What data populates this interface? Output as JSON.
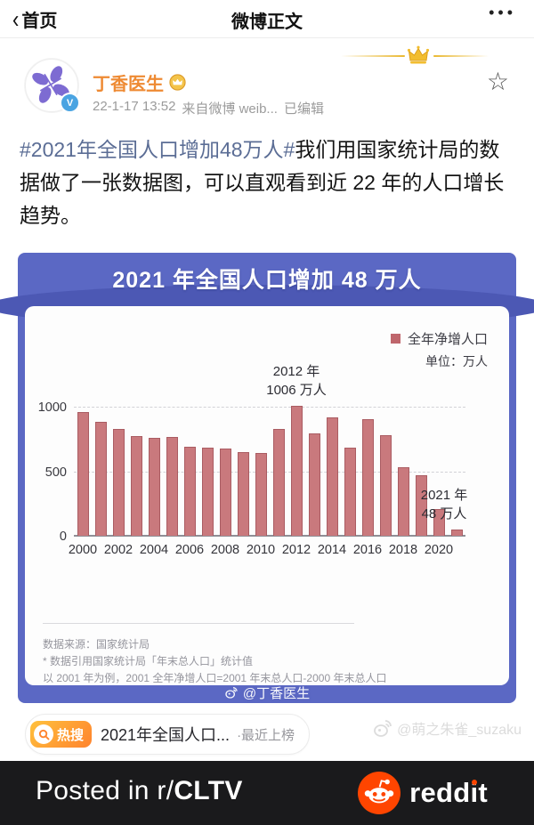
{
  "navbar": {
    "back_label": "首页",
    "title": "微博正文"
  },
  "post": {
    "author": "丁香医生",
    "timestamp": "22-1-17 13:52",
    "source": "来自微博 weib...",
    "edited_label": "已编辑",
    "hashtag": "#2021年全国人口增加48万人#",
    "body": "我们用国家统计局的数据做了一张数据图，可以直观看到近 22 年的人口增长趋势。"
  },
  "chart_data": {
    "type": "bar",
    "title": "2021 年全国人口增加 48 万人",
    "legend": "全年净增人口",
    "unit_label": "单位：万人",
    "categories": [
      2000,
      2001,
      2002,
      2003,
      2004,
      2005,
      2006,
      2007,
      2008,
      2009,
      2010,
      2011,
      2012,
      2013,
      2014,
      2015,
      2016,
      2017,
      2018,
      2019,
      2020,
      2021
    ],
    "values": [
      957,
      884,
      826,
      774,
      761,
      768,
      692,
      681,
      673,
      646,
      641,
      825,
      1006,
      795,
      915,
      680,
      906,
      779,
      530,
      467,
      204,
      48
    ],
    "ylim": [
      0,
      1100
    ],
    "yticks": [
      0,
      500,
      1000
    ],
    "xticks": [
      2000,
      2002,
      2004,
      2006,
      2008,
      2010,
      2012,
      2014,
      2016,
      2018,
      2020
    ],
    "grid": "dashed horizontal",
    "legend_position": "top-right",
    "annotations": [
      {
        "x": 2012,
        "dx": 0,
        "lines": [
          "2012 年",
          "1006 万人"
        ]
      },
      {
        "x": 2021,
        "dx": -14,
        "lines": [
          "2021 年",
          "48 万人"
        ]
      }
    ],
    "bar_color": "#c9797d",
    "bar_border": "#aa5c62",
    "card_color": "#5b68c4",
    "footnotes": [
      "数据来源：国家统计局",
      "* 数据引用国家统计局「年末总人口」统计值",
      "以 2001 年为例，2001 全年净增人口=2001 年末总人口-2000 年末总人口"
    ],
    "watermark": "@丁香医生"
  },
  "hotsearch": {
    "badge": "热搜",
    "title": "2021年全国人口...",
    "status": "·最近上榜"
  },
  "page_watermark": "@萌之朱雀_suzaku",
  "reddit_banner": {
    "text_prefix": "Posted in r/",
    "subreddit": "CLTV",
    "brand": "reddit",
    "brand_color": "#ff4500"
  }
}
